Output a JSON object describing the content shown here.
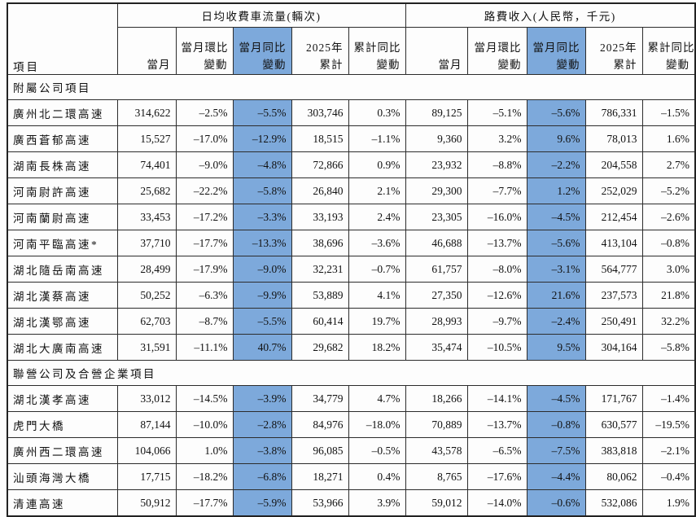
{
  "colors": {
    "highlight_blue": "#7DA9DB",
    "border": "#2c2c2c",
    "text": "#111111"
  },
  "table": {
    "row_header_label": "項目",
    "groups": [
      {
        "title": "日均收費車流量(輛次)"
      },
      {
        "title": "路費收入(人民幣，千元)"
      }
    ],
    "sub_columns": [
      {
        "lines": [
          "當月"
        ],
        "highlight": false
      },
      {
        "lines": [
          "當月環比",
          "變動"
        ],
        "highlight": false
      },
      {
        "lines": [
          "當月同比",
          "變動"
        ],
        "highlight": true
      },
      {
        "lines": [
          "2025年",
          "累計"
        ],
        "highlight": false
      },
      {
        "lines": [
          "累計同比",
          "變動"
        ],
        "highlight": false
      }
    ],
    "sections": [
      {
        "title": "附屬公司項目",
        "rows": [
          {
            "name": "廣州北二環高速",
            "values": [
              "314,622",
              "–2.5%",
              "–5.5%",
              "303,746",
              "0.3%",
              "89,125",
              "–5.1%",
              "–5.6%",
              "786,331",
              "–1.5%"
            ]
          },
          {
            "name": "廣西蒼郁高速",
            "values": [
              "15,527",
              "–17.0%",
              "–12.9%",
              "18,515",
              "–1.1%",
              "9,360",
              "3.2%",
              "9.6%",
              "78,013",
              "1.6%"
            ]
          },
          {
            "name": "湖南長株高速",
            "values": [
              "74,401",
              "–9.0%",
              "–4.8%",
              "72,866",
              "0.9%",
              "23,932",
              "–8.8%",
              "–2.2%",
              "204,558",
              "2.7%"
            ]
          },
          {
            "name": "河南尉許高速",
            "values": [
              "25,682",
              "–22.2%",
              "–5.8%",
              "26,840",
              "2.1%",
              "29,300",
              "–7.7%",
              "1.2%",
              "252,029",
              "–5.2%"
            ]
          },
          {
            "name": "河南蘭尉高速",
            "values": [
              "33,453",
              "–17.2%",
              "–3.3%",
              "33,193",
              "2.4%",
              "23,305",
              "–16.0%",
              "–4.5%",
              "212,454",
              "–2.6%"
            ]
          },
          {
            "name": "河南平臨高速*",
            "values": [
              "37,710",
              "–17.7%",
              "–13.3%",
              "38,696",
              "–3.6%",
              "46,688",
              "–13.7%",
              "–5.6%",
              "413,104",
              "–0.8%"
            ]
          },
          {
            "name": "湖北隨岳南高速",
            "values": [
              "28,499",
              "–17.9%",
              "–9.0%",
              "32,231",
              "–0.7%",
              "61,757",
              "–8.0%",
              "–3.1%",
              "564,777",
              "3.0%"
            ]
          },
          {
            "name": "湖北漢蔡高速",
            "values": [
              "50,252",
              "–6.3%",
              "–9.9%",
              "53,889",
              "4.1%",
              "27,350",
              "–12.6%",
              "21.6%",
              "237,573",
              "21.8%"
            ]
          },
          {
            "name": "湖北漢鄂高速",
            "values": [
              "62,703",
              "–8.7%",
              "–5.5%",
              "60,414",
              "19.7%",
              "28,993",
              "–9.7%",
              "–2.4%",
              "250,491",
              "32.2%"
            ]
          },
          {
            "name": "湖北大廣南高速",
            "values": [
              "31,591",
              "–11.1%",
              "40.7%",
              "29,682",
              "18.2%",
              "35,474",
              "–10.5%",
              "9.5%",
              "304,164",
              "–5.8%"
            ]
          }
        ]
      },
      {
        "title": "聯營公司及合營企業項目",
        "rows": [
          {
            "name": "湖北漢孝高速",
            "values": [
              "33,012",
              "–14.5%",
              "–3.9%",
              "34,779",
              "4.7%",
              "18,266",
              "–14.1%",
              "–4.5%",
              "171,767",
              "–1.4%"
            ]
          },
          {
            "name": "虎門大橋",
            "values": [
              "87,144",
              "–10.0%",
              "–2.8%",
              "84,976",
              "–18.0%",
              "70,889",
              "–13.7%",
              "–0.8%",
              "630,577",
              "–19.5%"
            ]
          },
          {
            "name": "廣州西二環高速",
            "values": [
              "104,066",
              "1.0%",
              "–3.8%",
              "96,085",
              "–0.5%",
              "43,578",
              "–6.5%",
              "–7.5%",
              "383,818",
              "–2.1%"
            ]
          },
          {
            "name": "汕頭海灣大橋",
            "values": [
              "17,715",
              "–18.2%",
              "–6.8%",
              "18,271",
              "0.4%",
              "8,765",
              "–17.6%",
              "–4.4%",
              "80,062",
              "–0.4%"
            ]
          },
          {
            "name": "清連高速",
            "values": [
              "50,912",
              "–17.7%",
              "–5.9%",
              "53,966",
              "3.9%",
              "59,012",
              "–14.0%",
              "–0.6%",
              "532,086",
              "1.9%"
            ]
          }
        ]
      }
    ]
  }
}
